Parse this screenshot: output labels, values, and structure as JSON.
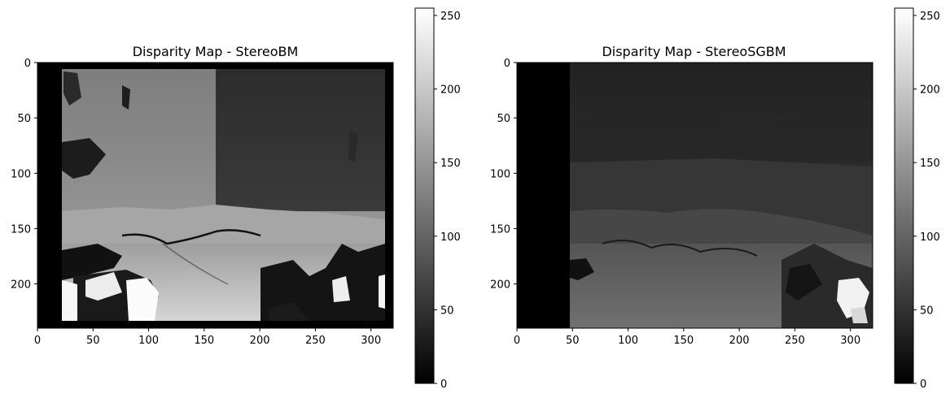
{
  "chart_data": [
    {
      "type": "heatmap",
      "title": "Disparity Map - StereoBM",
      "colormap": "gray",
      "xlim": [
        0,
        320
      ],
      "ylim": [
        240,
        0
      ],
      "xticks": [
        "0",
        "50",
        "100",
        "150",
        "200",
        "250",
        "300"
      ],
      "yticks": [
        "0",
        "50",
        "100",
        "150",
        "200"
      ],
      "colorbar": {
        "min": 0,
        "max": 255,
        "ticks": [
          "0",
          "50",
          "100",
          "150",
          "200",
          "250"
        ]
      }
    },
    {
      "type": "heatmap",
      "title": "Disparity Map - StereoSGBM",
      "colormap": "gray",
      "xlim": [
        0,
        320
      ],
      "ylim": [
        240,
        0
      ],
      "xticks": [
        "0",
        "50",
        "100",
        "150",
        "200",
        "250",
        "300"
      ],
      "yticks": [
        "0",
        "50",
        "100",
        "150",
        "200"
      ],
      "colorbar": {
        "min": 0,
        "max": 255,
        "ticks": [
          "0",
          "50",
          "100",
          "150",
          "200",
          "250"
        ]
      }
    }
  ]
}
